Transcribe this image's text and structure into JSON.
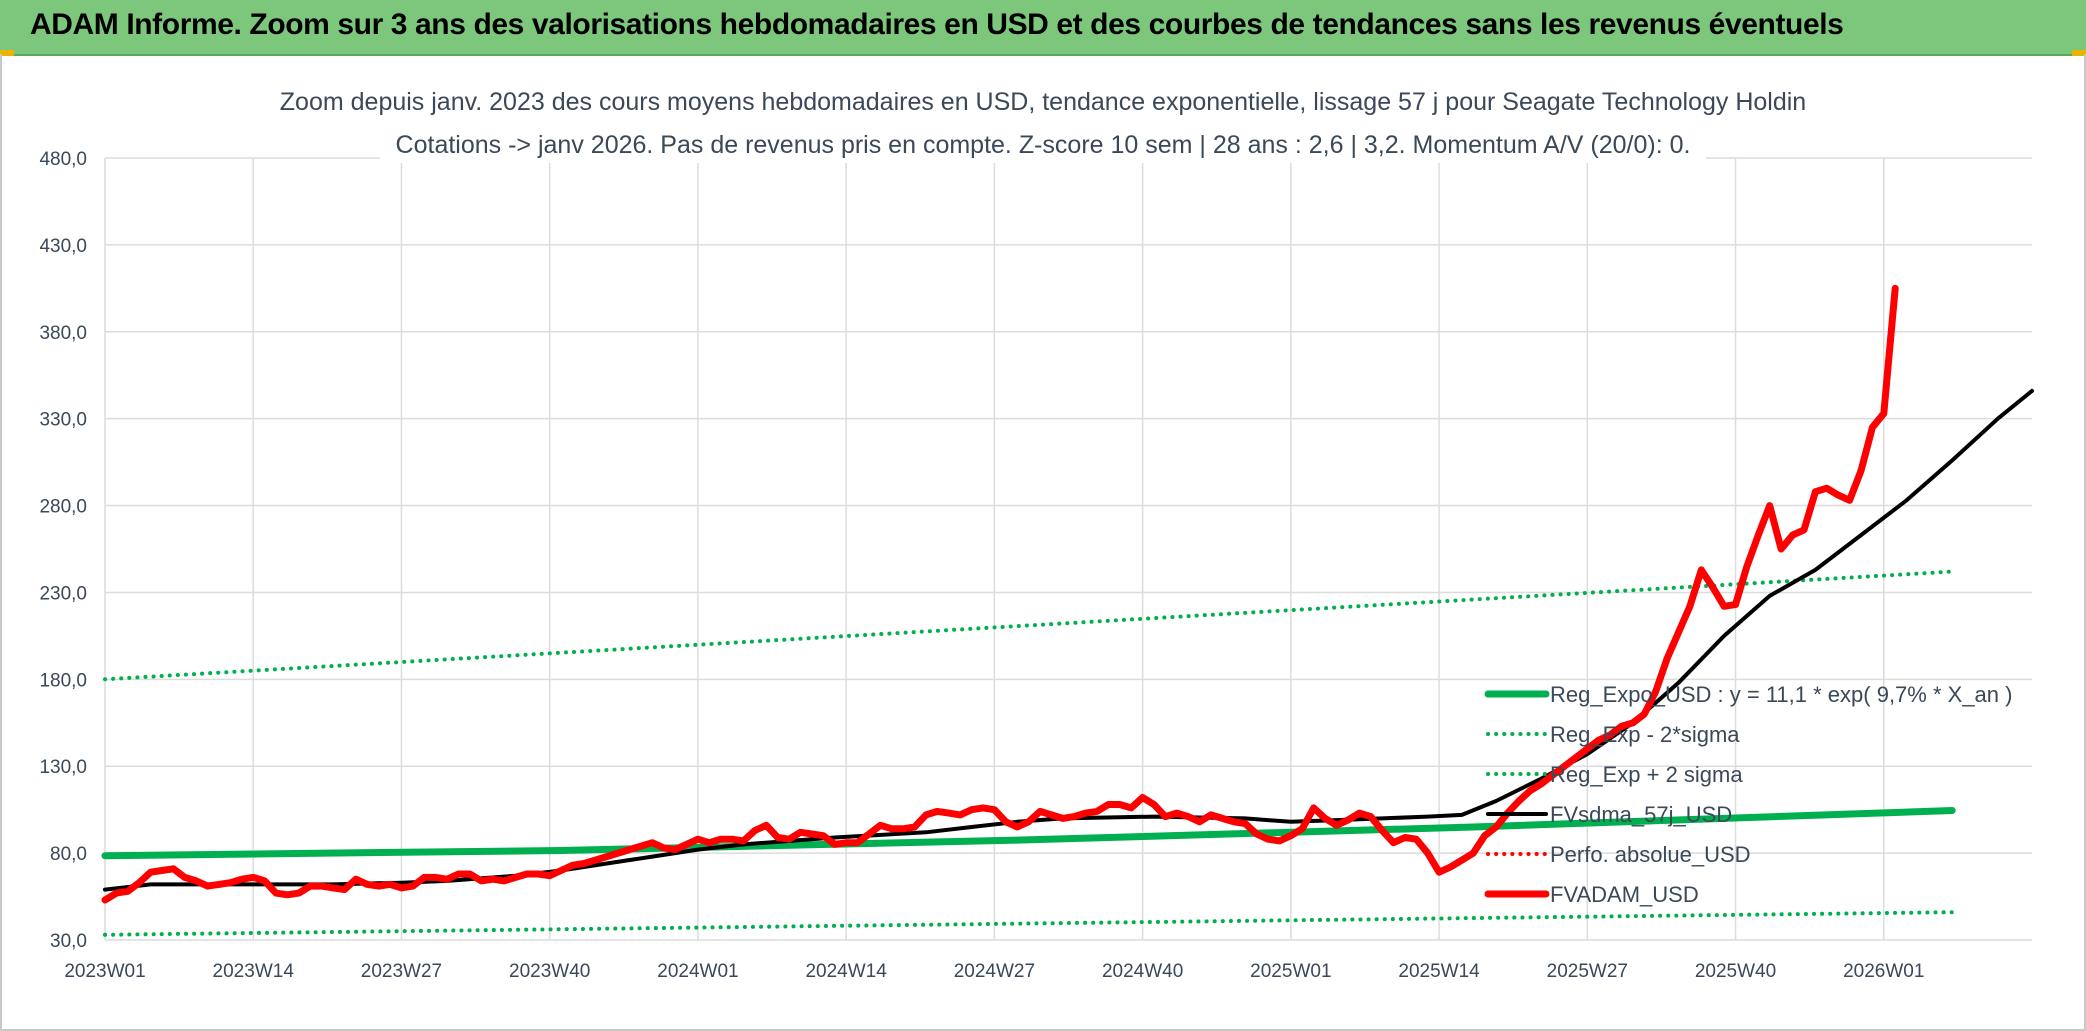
{
  "banner": {
    "title": "ADAM Informe. Zoom sur 3 ans des valorisations hebdomadaires en USD et des courbes de tendances sans les revenus éventuels"
  },
  "colors": {
    "banner_bg": "#7dc77d",
    "green": "#00b050",
    "red": "#ff0000",
    "black": "#000000",
    "grid": "#dcdcdc",
    "text": "#3a4858"
  },
  "chart_data": {
    "type": "line",
    "title": "Zoom depuis janv. 2023 des cours moyens hebdomadaires en USD, tendance exponentielle, lissage 57 j pour Seagate Technology Holdin",
    "subtitle": "Cotations -> janv 2026. Pas de revenus pris en compte. Z-score 10 sem | 28 ans : 2,6 | 3,2. Momentum A/V (20/0): 0.",
    "xlabel": "",
    "ylabel": "",
    "ylim": [
      30,
      480
    ],
    "yticks": [
      "30,0",
      "80,0",
      "130,0",
      "180,0",
      "230,0",
      "280,0",
      "330,0",
      "380,0",
      "430,0",
      "480,0"
    ],
    "xticks": [
      "2023W01",
      "2023W14",
      "2023W27",
      "2023W40",
      "2024W01",
      "2024W14",
      "2024W27",
      "2024W40",
      "2025W01",
      "2025W14",
      "2025W27",
      "2025W40",
      "2026W01"
    ],
    "x_range_weeks": [
      0,
      162
    ],
    "grid": true,
    "legend_position": "right",
    "series": [
      {
        "name": "Reg_Expo_USD : y = 11,1 * exp( 9,7% *  X_an )",
        "style": "solid-thick",
        "color": "#00b050",
        "points": [
          [
            0,
            78.5
          ],
          [
            40,
            81.5
          ],
          [
            80,
            87.5
          ],
          [
            120,
            95
          ],
          [
            162,
            104.5
          ]
        ]
      },
      {
        "name": "Reg_Exp - 2*sigma",
        "style": "dotted",
        "color": "#00b050",
        "points": [
          [
            0,
            33
          ],
          [
            162,
            46
          ]
        ]
      },
      {
        "name": "Reg_Exp + 2 sigma",
        "style": "dotted",
        "color": "#00b050",
        "points": [
          [
            0,
            180
          ],
          [
            162,
            242
          ]
        ]
      },
      {
        "name": "FVsdma_57j_USD",
        "style": "solid",
        "color": "#000000",
        "points": [
          [
            0,
            59
          ],
          [
            4,
            62
          ],
          [
            10,
            62
          ],
          [
            20,
            62
          ],
          [
            26,
            63
          ],
          [
            30,
            64
          ],
          [
            36,
            67
          ],
          [
            40,
            70
          ],
          [
            44,
            74
          ],
          [
            48,
            78
          ],
          [
            52,
            82
          ],
          [
            56,
            85
          ],
          [
            64,
            89
          ],
          [
            72,
            92
          ],
          [
            76,
            95
          ],
          [
            80,
            98
          ],
          [
            84,
            100
          ],
          [
            92,
            101
          ],
          [
            100,
            100
          ],
          [
            104,
            98
          ],
          [
            108,
            99
          ],
          [
            112,
            100
          ],
          [
            116,
            101
          ],
          [
            119,
            102
          ],
          [
            122,
            110
          ],
          [
            126,
            123
          ],
          [
            130,
            137
          ],
          [
            134,
            155
          ],
          [
            138,
            178
          ],
          [
            142,
            205
          ],
          [
            146,
            228
          ],
          [
            150,
            243
          ],
          [
            154,
            263
          ],
          [
            158,
            283
          ],
          [
            162,
            306
          ],
          [
            166,
            330
          ],
          [
            169,
            346
          ]
        ]
      },
      {
        "name": "Perfo. absolue_USD",
        "style": "dotted",
        "color": "#ff0000",
        "points": []
      },
      {
        "name": "FVADAM_USD",
        "style": "solid-thick",
        "color": "#ff0000",
        "points": [
          [
            0,
            53
          ],
          [
            1,
            57
          ],
          [
            2,
            58
          ],
          [
            3,
            63
          ],
          [
            4,
            69
          ],
          [
            5,
            70
          ],
          [
            6,
            71
          ],
          [
            7,
            66
          ],
          [
            8,
            64
          ],
          [
            9,
            61
          ],
          [
            10,
            62
          ],
          [
            11,
            63
          ],
          [
            12,
            65
          ],
          [
            13,
            66
          ],
          [
            14,
            64
          ],
          [
            15,
            57
          ],
          [
            16,
            56
          ],
          [
            17,
            57
          ],
          [
            18,
            61
          ],
          [
            19,
            61
          ],
          [
            20,
            60
          ],
          [
            21,
            59
          ],
          [
            22,
            65
          ],
          [
            23,
            62
          ],
          [
            24,
            61
          ],
          [
            25,
            62
          ],
          [
            26,
            60
          ],
          [
            27,
            61
          ],
          [
            28,
            66
          ],
          [
            29,
            66
          ],
          [
            30,
            65
          ],
          [
            31,
            68
          ],
          [
            32,
            68
          ],
          [
            33,
            64
          ],
          [
            34,
            65
          ],
          [
            35,
            64
          ],
          [
            36,
            66
          ],
          [
            37,
            68
          ],
          [
            38,
            68
          ],
          [
            39,
            67
          ],
          [
            40,
            70
          ],
          [
            41,
            73
          ],
          [
            42,
            74
          ],
          [
            43,
            76
          ],
          [
            44,
            78
          ],
          [
            45,
            80
          ],
          [
            46,
            82
          ],
          [
            47,
            84
          ],
          [
            48,
            86
          ],
          [
            49,
            83
          ],
          [
            50,
            82
          ],
          [
            51,
            85
          ],
          [
            52,
            88
          ],
          [
            53,
            86
          ],
          [
            54,
            88
          ],
          [
            55,
            88
          ],
          [
            56,
            87
          ],
          [
            57,
            93
          ],
          [
            58,
            96
          ],
          [
            59,
            89
          ],
          [
            60,
            88
          ],
          [
            61,
            92
          ],
          [
            62,
            91
          ],
          [
            63,
            90
          ],
          [
            64,
            85
          ],
          [
            65,
            86
          ],
          [
            66,
            86
          ],
          [
            67,
            91
          ],
          [
            68,
            96
          ],
          [
            69,
            94
          ],
          [
            70,
            94
          ],
          [
            71,
            95
          ],
          [
            72,
            102
          ],
          [
            73,
            104
          ],
          [
            74,
            103
          ],
          [
            75,
            102
          ],
          [
            76,
            105
          ],
          [
            77,
            106
          ],
          [
            78,
            105
          ],
          [
            79,
            98
          ],
          [
            80,
            95
          ],
          [
            81,
            98
          ],
          [
            82,
            104
          ],
          [
            83,
            102
          ],
          [
            84,
            100
          ],
          [
            85,
            101
          ],
          [
            86,
            103
          ],
          [
            87,
            104
          ],
          [
            88,
            108
          ],
          [
            89,
            108
          ],
          [
            90,
            106
          ],
          [
            91,
            112
          ],
          [
            92,
            108
          ],
          [
            93,
            101
          ],
          [
            94,
            103
          ],
          [
            95,
            101
          ],
          [
            96,
            98
          ],
          [
            97,
            102
          ],
          [
            98,
            100
          ],
          [
            99,
            98
          ],
          [
            100,
            97
          ],
          [
            101,
            91
          ],
          [
            102,
            88
          ],
          [
            103,
            87
          ],
          [
            104,
            90
          ],
          [
            105,
            94
          ],
          [
            106,
            106
          ],
          [
            107,
            100
          ],
          [
            108,
            96
          ],
          [
            109,
            99
          ],
          [
            110,
            103
          ],
          [
            111,
            101
          ],
          [
            112,
            93
          ],
          [
            113,
            86
          ],
          [
            114,
            89
          ],
          [
            115,
            88
          ],
          [
            116,
            80
          ],
          [
            117,
            69
          ],
          [
            118,
            72
          ],
          [
            119,
            76
          ],
          [
            120,
            80
          ],
          [
            121,
            90
          ],
          [
            122,
            95
          ],
          [
            123,
            103
          ],
          [
            124,
            110
          ],
          [
            125,
            116
          ],
          [
            126,
            120
          ],
          [
            127,
            125
          ],
          [
            128,
            130
          ],
          [
            129,
            135
          ],
          [
            130,
            140
          ],
          [
            131,
            145
          ],
          [
            132,
            148
          ],
          [
            133,
            153
          ],
          [
            134,
            155
          ],
          [
            135,
            160
          ],
          [
            136,
            173
          ],
          [
            137,
            192
          ],
          [
            138,
            207
          ],
          [
            139,
            222
          ],
          [
            140,
            243
          ],
          [
            141,
            233
          ],
          [
            142,
            222
          ],
          [
            143,
            223
          ],
          [
            144,
            245
          ],
          [
            145,
            263
          ],
          [
            146,
            280
          ],
          [
            147,
            255
          ],
          [
            148,
            263
          ],
          [
            149,
            266
          ],
          [
            150,
            288
          ],
          [
            151,
            290
          ],
          [
            152,
            286
          ],
          [
            153,
            283
          ],
          [
            154,
            300
          ],
          [
            155,
            325
          ],
          [
            156,
            333
          ],
          [
            157,
            405
          ]
        ]
      }
    ]
  }
}
